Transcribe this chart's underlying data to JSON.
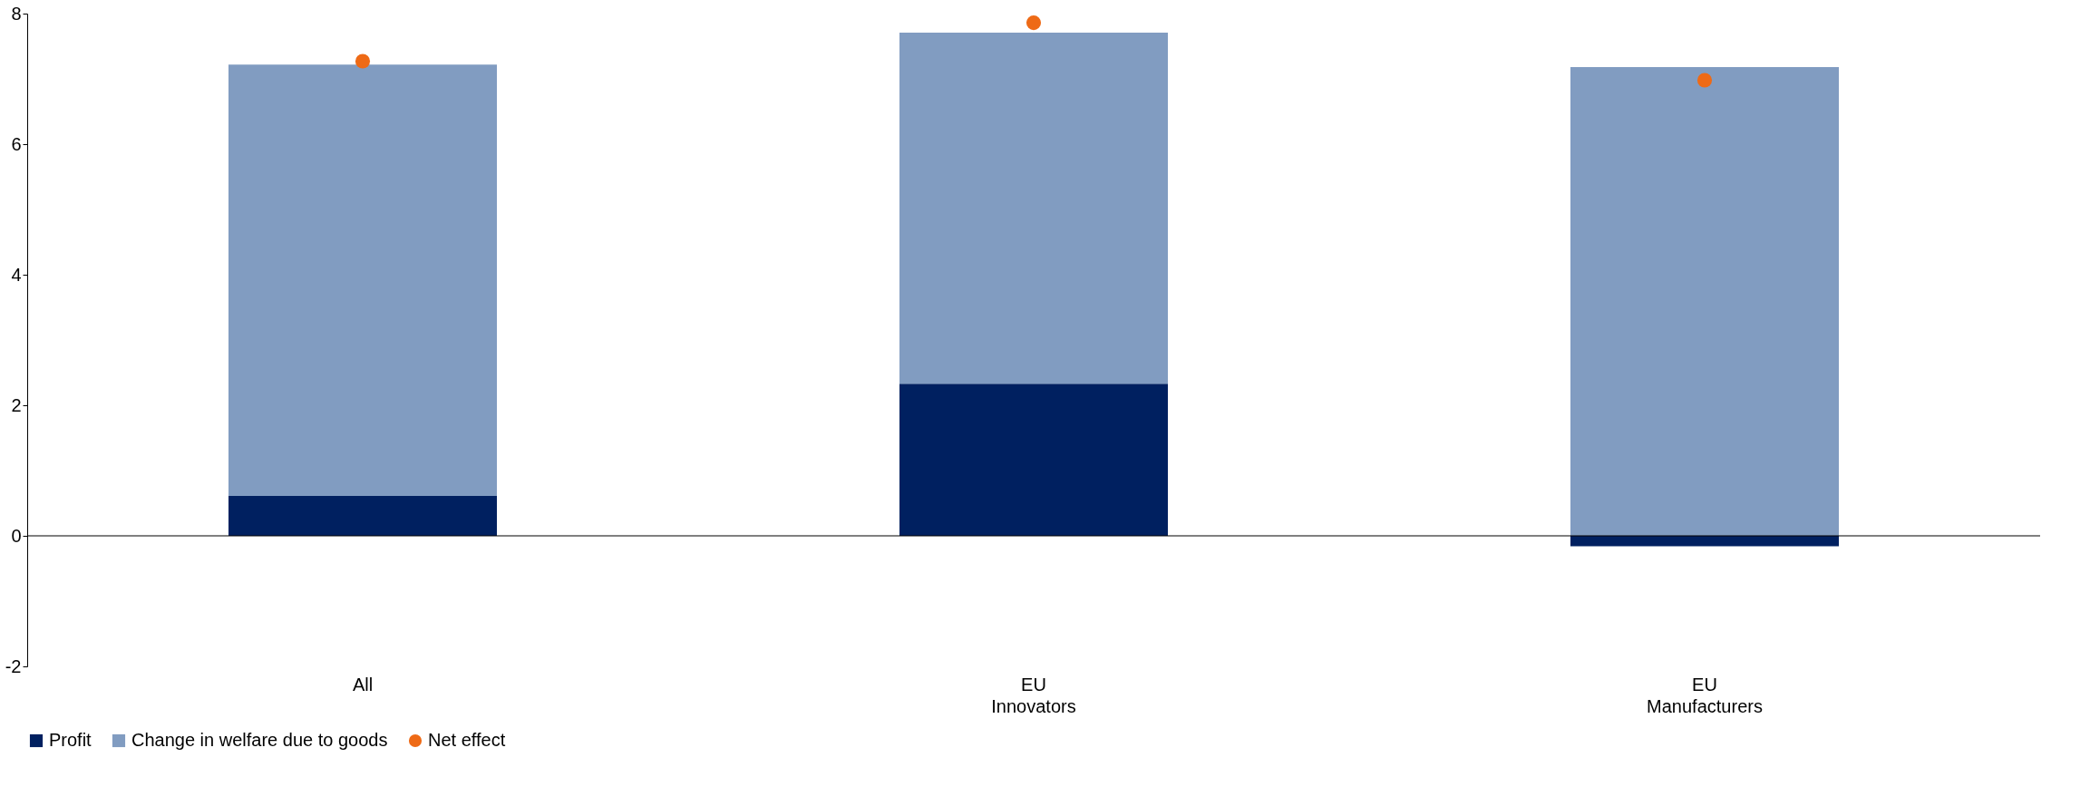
{
  "chart_data": {
    "type": "bar",
    "stacked": true,
    "categories": [
      "All",
      "EU\nInnovators",
      "EU\nManufacturers"
    ],
    "series": [
      {
        "name": "Profit",
        "type": "bar",
        "color": "#002060",
        "values": [
          0.61,
          2.33,
          -0.16
        ]
      },
      {
        "name": "Change in welfare due to goods",
        "type": "bar",
        "color": "#819cc1",
        "values": [
          6.61,
          5.38,
          7.18
        ]
      },
      {
        "name": "Net effect",
        "type": "scatter",
        "color": "#ee6a16",
        "values": [
          7.27,
          7.86,
          6.98
        ]
      }
    ],
    "ylim": [
      -2,
      8
    ],
    "yticks": [
      -2,
      0,
      2,
      4,
      6,
      8
    ],
    "ref_lines": [
      {
        "axis": "y",
        "value": 0,
        "color": "#000000"
      }
    ],
    "grid": false,
    "legend": "bottom",
    "marker": "circle"
  }
}
